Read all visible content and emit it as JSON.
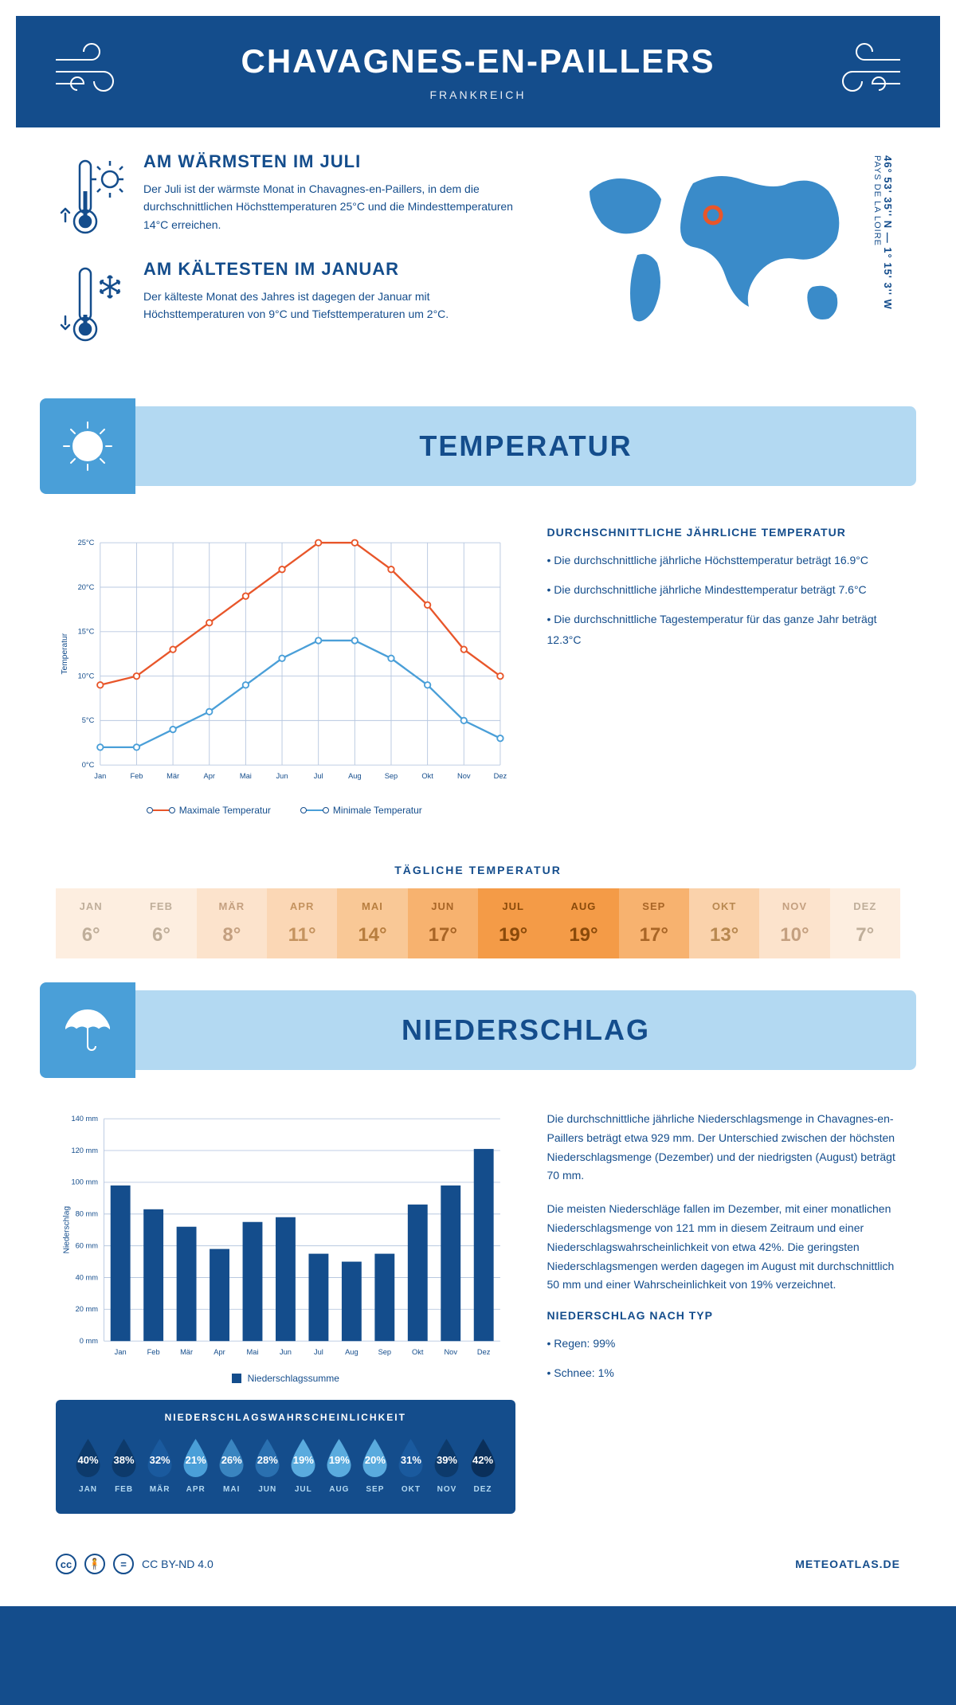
{
  "header": {
    "title": "CHAVAGNES-EN-PAILLERS",
    "country": "FRANKREICH"
  },
  "coords": {
    "lat": "46° 53' 35'' N — 1° 15' 3'' W",
    "region": "PAYS DE LA LOIRE"
  },
  "intro": {
    "warm_title": "AM WÄRMSTEN IM JULI",
    "warm_text": "Der Juli ist der wärmste Monat in Chavagnes-en-Paillers, in dem die durchschnittlichen Höchsttemperaturen 25°C und die Mindesttemperaturen 14°C erreichen.",
    "cold_title": "AM KÄLTESTEN IM JANUAR",
    "cold_text": "Der kälteste Monat des Jahres ist dagegen der Januar mit Höchsttemperaturen von 9°C und Tiefsttemperaturen um 2°C."
  },
  "temp_section": {
    "header": "TEMPERATUR",
    "info_title": "DURCHSCHNITTLICHE JÄHRLICHE TEMPERATUR",
    "bullet1": "• Die durchschnittliche jährliche Höchsttemperatur beträgt 16.9°C",
    "bullet2": "• Die durchschnittliche jährliche Mindesttemperatur beträgt 7.6°C",
    "bullet3": "• Die durchschnittliche Tagestemperatur für das ganze Jahr beträgt 12.3°C",
    "y_label": "Temperatur",
    "legend_max": "Maximale Temperatur",
    "legend_min": "Minimale Temperatur",
    "chart": {
      "months": [
        "Jan",
        "Feb",
        "Mär",
        "Apr",
        "Mai",
        "Jun",
        "Jul",
        "Aug",
        "Sep",
        "Okt",
        "Nov",
        "Dez"
      ],
      "max": [
        9,
        10,
        13,
        16,
        19,
        22,
        25,
        25,
        22,
        18,
        13,
        10
      ],
      "min": [
        2,
        2,
        4,
        6,
        9,
        12,
        14,
        14,
        12,
        9,
        5,
        3
      ],
      "ylim": [
        0,
        25
      ],
      "ystep": 5,
      "max_color": "#e8562a",
      "min_color": "#4a9fd8",
      "grid_color": "#b8c8e0",
      "bg": "#ffffff"
    }
  },
  "daily": {
    "title": "TÄGLICHE TEMPERATUR",
    "months": [
      "JAN",
      "FEB",
      "MÄR",
      "APR",
      "MAI",
      "JUN",
      "JUL",
      "AUG",
      "SEP",
      "OKT",
      "NOV",
      "DEZ"
    ],
    "values": [
      "6°",
      "6°",
      "8°",
      "11°",
      "14°",
      "17°",
      "19°",
      "19°",
      "17°",
      "13°",
      "10°",
      "7°"
    ],
    "bg_colors": [
      "#fdeee0",
      "#fdeee0",
      "#fce3cc",
      "#fbd7b5",
      "#f9c896",
      "#f7b26f",
      "#f49b47",
      "#f49b47",
      "#f7b26f",
      "#fad2ab",
      "#fce3cc",
      "#fdeee0"
    ],
    "text_colors": [
      "#bfae9a",
      "#bfae9a",
      "#c4a080",
      "#c4935f",
      "#b87e3f",
      "#a86526",
      "#8a4a0a",
      "#8a4a0a",
      "#a86526",
      "#b88850",
      "#c4a080",
      "#bfae9a"
    ]
  },
  "precip_section": {
    "header": "NIEDERSCHLAG",
    "y_label": "Niederschlag",
    "legend": "Niederschlagssumme",
    "chart": {
      "months": [
        "Jan",
        "Feb",
        "Mär",
        "Apr",
        "Mai",
        "Jun",
        "Jul",
        "Aug",
        "Sep",
        "Okt",
        "Nov",
        "Dez"
      ],
      "values": [
        98,
        83,
        72,
        58,
        75,
        78,
        55,
        50,
        55,
        86,
        98,
        121
      ],
      "ylim": [
        0,
        140
      ],
      "ystep": 20,
      "bar_color": "#144d8c",
      "grid_color": "#b8c8e0"
    },
    "text1": "Die durchschnittliche jährliche Niederschlagsmenge in Chavagnes-en-Paillers beträgt etwa 929 mm. Der Unterschied zwischen der höchsten Niederschlagsmenge (Dezember) und der niedrigsten (August) beträgt 70 mm.",
    "text2": "Die meisten Niederschläge fallen im Dezember, mit einer monatlichen Niederschlagsmenge von 121 mm in diesem Zeitraum und einer Niederschlagswahrscheinlichkeit von etwa 42%. Die geringsten Niederschlagsmengen werden dagegen im August mit durchschnittlich 50 mm und einer Wahrscheinlichkeit von 19% verzeichnet.",
    "type_title": "NIEDERSCHLAG NACH TYP",
    "type1": "• Regen: 99%",
    "type2": "• Schnee: 1%"
  },
  "prob": {
    "title": "NIEDERSCHLAGSWAHRSCHEINLICHKEIT",
    "months": [
      "JAN",
      "FEB",
      "MÄR",
      "APR",
      "MAI",
      "JUN",
      "JUL",
      "AUG",
      "SEP",
      "OKT",
      "NOV",
      "DEZ"
    ],
    "values": [
      "40%",
      "38%",
      "32%",
      "21%",
      "26%",
      "28%",
      "19%",
      "19%",
      "20%",
      "31%",
      "39%",
      "42%"
    ],
    "drop_colors": [
      "#0d3a6b",
      "#0d3a6b",
      "#1a5a9e",
      "#4a9fd8",
      "#3a85c0",
      "#2a70b0",
      "#5aabde",
      "#5aabde",
      "#5aabde",
      "#1a5a9e",
      "#0d3a6b",
      "#0a2f5a"
    ]
  },
  "footer": {
    "license": "CC BY-ND 4.0",
    "site": "METEOATLAS.DE"
  }
}
